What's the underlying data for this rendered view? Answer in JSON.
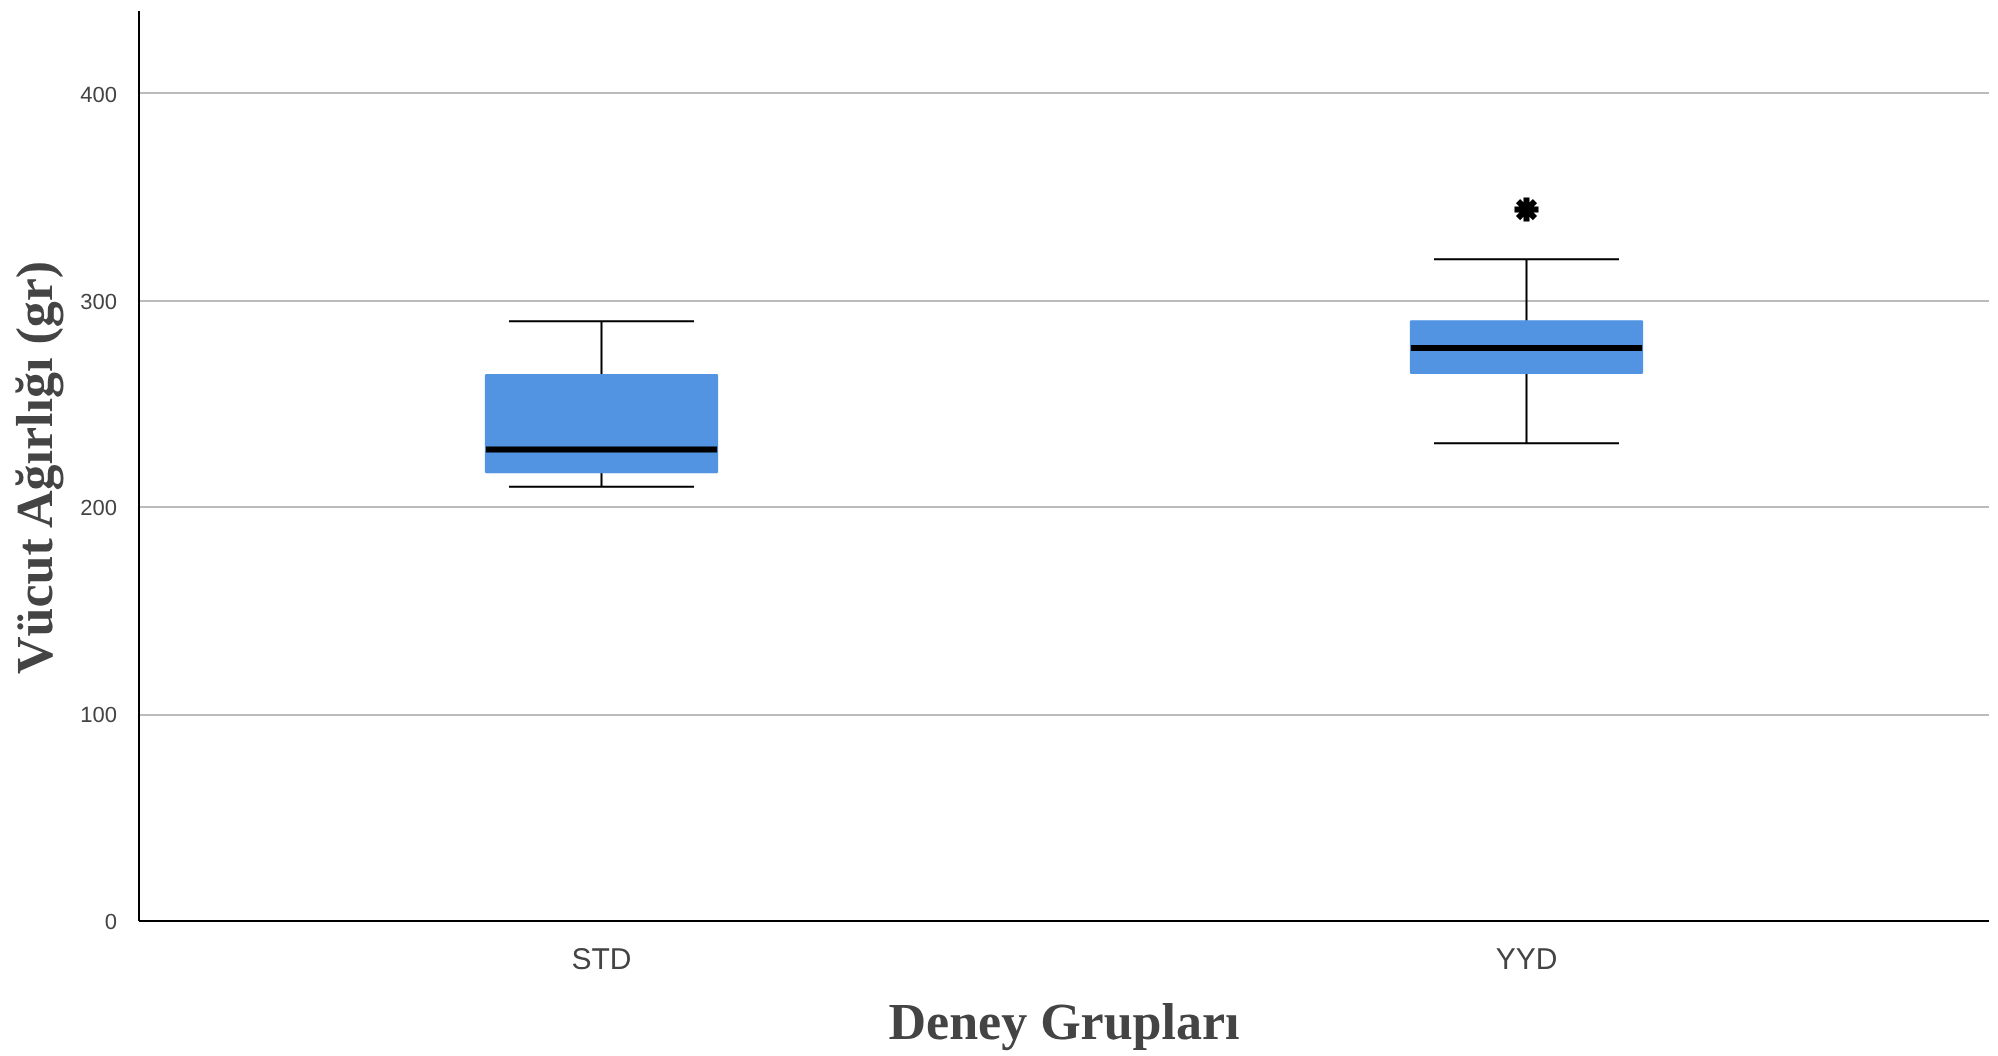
{
  "chart_data": {
    "type": "box",
    "xlabel": "Deney Grupları",
    "ylabel": "Vücut Ağırlığı (gr)",
    "categories": [
      "STD",
      "YYD"
    ],
    "boxes": [
      {
        "low": 210,
        "q1": 217,
        "median": 228,
        "q3": 264,
        "high": 290
      },
      {
        "low": 231,
        "q1": 265,
        "median": 277,
        "q3": 290,
        "high": 320,
        "outliers": [
          344
        ]
      }
    ],
    "color": "#5294e2",
    "ylim": [
      0,
      440
    ],
    "yticks": [
      0,
      100,
      200,
      300,
      400
    ],
    "grid": "y"
  }
}
